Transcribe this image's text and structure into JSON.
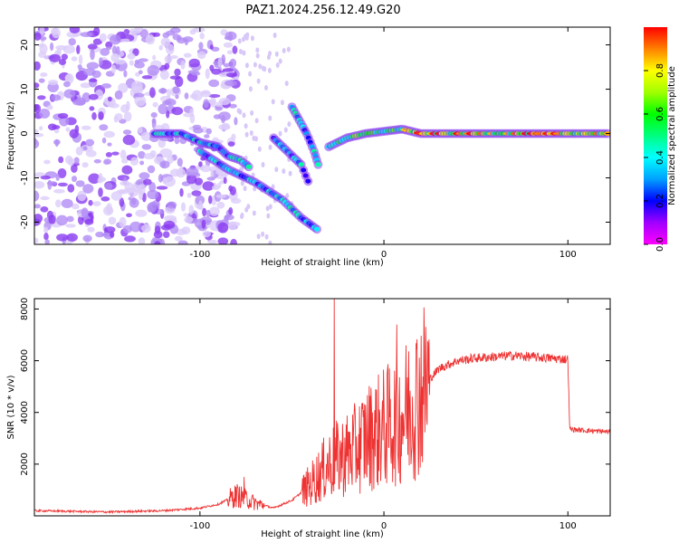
{
  "title": "PAZ1.2024.256.12.49.G20",
  "chart_data": [
    {
      "type": "heatmap",
      "xlabel": "Height of straight line (km)",
      "ylabel": "Frequency (Hz)",
      "xlim": [
        -190,
        123
      ],
      "ylim": [
        -25,
        24
      ],
      "x_ticks": [
        -100,
        0,
        100
      ],
      "x_tick_labels": [
        "-100",
        "0",
        "100"
      ],
      "y_ticks": [
        -20,
        -10,
        0,
        10,
        20
      ],
      "y_tick_labels": [
        "-20",
        "-10",
        "0",
        "10",
        "20"
      ],
      "colorbar": {
        "label": "Normalized spectral amplitude",
        "range": [
          0,
          1
        ],
        "ticks": [
          0.0,
          0.2,
          0.4,
          0.6,
          0.8
        ],
        "tick_labels": [
          "0.0",
          "0.2",
          "0.4",
          "0.6",
          "0.8"
        ],
        "colormap": "rainbow"
      },
      "features": [
        {
          "name": "main-trace",
          "points": [
            [
              -125,
              0
            ],
            [
              -110,
              0
            ],
            [
              -100,
              -2
            ],
            [
              -90,
              -3
            ],
            [
              -85,
              -5
            ],
            [
              -78,
              -6
            ],
            [
              -72,
              -8
            ]
          ]
        },
        {
          "name": "lower-branch",
          "points": [
            [
              -100,
              -4
            ],
            [
              -85,
              -8
            ],
            [
              -70,
              -11
            ],
            [
              -55,
              -15
            ],
            [
              -45,
              -19
            ],
            [
              -35,
              -22
            ]
          ]
        },
        {
          "name": "mid-branch",
          "points": [
            [
              -60,
              -1
            ],
            [
              -55,
              -3
            ],
            [
              -50,
              -5
            ],
            [
              -45,
              -7
            ],
            [
              -40,
              -12
            ]
          ]
        },
        {
          "name": "upper-branch",
          "points": [
            [
              -50,
              6
            ],
            [
              -46,
              3
            ],
            [
              -42,
              0
            ],
            [
              -38,
              -4
            ],
            [
              -35,
              -8
            ]
          ]
        },
        {
          "name": "stable-trace",
          "points": [
            [
              -30,
              -3
            ],
            [
              -20,
              -1
            ],
            [
              -10,
              0
            ],
            [
              0,
              0.5
            ],
            [
              10,
              1
            ],
            [
              20,
              0
            ],
            [
              40,
              0
            ],
            [
              60,
              0
            ],
            [
              80,
              0
            ],
            [
              100,
              0
            ],
            [
              123,
              0
            ]
          ]
        }
      ]
    },
    {
      "type": "line",
      "xlabel": "Height of straight line (km)",
      "ylabel": "SNR (10 * v/v)",
      "xlim": [
        -190,
        123
      ],
      "ylim": [
        0,
        8400
      ],
      "x_ticks": [
        -100,
        0,
        100
      ],
      "x_tick_labels": [
        "-100",
        "0",
        "100"
      ],
      "y_ticks": [
        2000,
        4000,
        6000,
        8000
      ],
      "y_tick_labels": [
        "2000",
        "4000",
        "6000",
        "8000"
      ],
      "color": "#ee3333",
      "envelope": {
        "x": [
          -190,
          -150,
          -120,
          -100,
          -90,
          -80,
          -70,
          -60,
          -50,
          -45,
          -40,
          -35,
          -30,
          -25,
          -20,
          -15,
          -10,
          -5,
          0,
          5,
          10,
          15,
          20,
          25,
          30,
          40,
          50,
          60,
          70,
          80,
          90,
          100,
          101,
          110,
          123
        ],
        "y": [
          200,
          150,
          200,
          300,
          450,
          800,
          500,
          300,
          600,
          900,
          1200,
          1600,
          2000,
          2200,
          2400,
          2600,
          3000,
          3200,
          3400,
          3600,
          3900,
          4300,
          4800,
          5300,
          5700,
          6000,
          6100,
          6150,
          6200,
          6150,
          6100,
          6050,
          3350,
          3300,
          3250
        ]
      },
      "spikes": [
        {
          "x": -27,
          "y": 8400
        },
        {
          "x": 7,
          "y": 7400
        },
        {
          "x": -76,
          "y": 1500
        }
      ]
    }
  ]
}
